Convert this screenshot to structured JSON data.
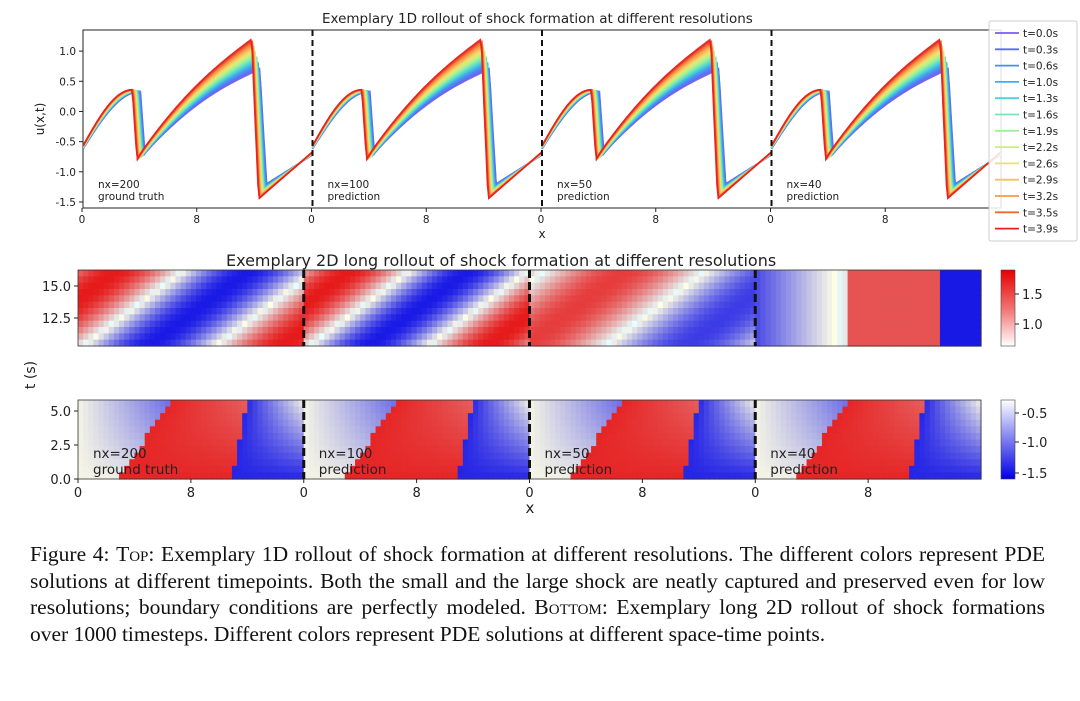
{
  "figure": {
    "top_title": "Exemplary 1D rollout of shock formation at different resolutions",
    "bottom_title": "Exemplary 2D long rollout of shock formation at different resolutions",
    "caption": {
      "label": "Figure 4:",
      "top_word": "Top",
      "top_text": "Exemplary 1D rollout of shock formation at different resolutions. The different colors represent PDE solutions at different timepoints. Both the small and the large shock are neatly captured and preserved even for low resolutions; boundary conditions are perfectly modeled.",
      "bottom_word": "Bottom",
      "bottom_text": "Exemplary long 2D rollout of shock formations over 1000 timesteps. Different colors represent PDE solutions at different space-time points."
    }
  },
  "chart_data": [
    {
      "type": "line",
      "title": "Exemplary 1D rollout of shock formation at different resolutions",
      "xlabel": "x",
      "ylabel": "u(x,t)",
      "ylim": [
        -1.6,
        1.35
      ],
      "yticks": [
        "1.0",
        "0.5",
        "0.0",
        "-0.5",
        "-1.0",
        "-1.5"
      ],
      "xticks": [
        "0",
        "8"
      ],
      "legend_position": "right",
      "series": [
        {
          "name": "t=0.0s",
          "color": "#7b5cf0"
        },
        {
          "name": "t=0.3s",
          "color": "#5c6ff4"
        },
        {
          "name": "t=0.6s",
          "color": "#4a8cf0"
        },
        {
          "name": "t=1.0s",
          "color": "#3fb1e8"
        },
        {
          "name": "t=1.3s",
          "color": "#4fd2d6"
        },
        {
          "name": "t=1.6s",
          "color": "#72e6b8"
        },
        {
          "name": "t=1.9s",
          "color": "#a0f09a"
        },
        {
          "name": "t=2.2s",
          "color": "#c7f07e"
        },
        {
          "name": "t=2.6s",
          "color": "#eee070"
        },
        {
          "name": "t=2.9s",
          "color": "#f8c060"
        },
        {
          "name": "t=3.2s",
          "color": "#f89a48"
        },
        {
          "name": "t=3.5s",
          "color": "#f06a34"
        },
        {
          "name": "t=3.9s",
          "color": "#e82020"
        }
      ],
      "panels": [
        {
          "resolution": "nx=200",
          "label": "ground truth"
        },
        {
          "resolution": "nx=100",
          "label": "prediction"
        },
        {
          "resolution": "nx=50",
          "label": "prediction"
        },
        {
          "resolution": "nx=40",
          "label": "prediction"
        }
      ]
    },
    {
      "type": "heatmap",
      "title": "Exemplary 2D long rollout of shock formation at different resolutions",
      "xlabel": "x",
      "ylabel": "t (s)",
      "xticks": [
        "0",
        "8"
      ],
      "upper_yticks": [
        "15.0",
        "12.5"
      ],
      "lower_yticks": [
        "5.0",
        "2.5",
        "0.0"
      ],
      "upper_colorbar": {
        "range": [
          0.75,
          1.85
        ],
        "ticks": [
          "1.5",
          "1.0"
        ]
      },
      "lower_colorbar": {
        "range": [
          -1.6,
          -0.3
        ],
        "ticks": [
          "-0.5",
          "-1.0",
          "-1.5"
        ]
      },
      "colormap": [
        "#0000e6",
        "#ffffff",
        "#e60000"
      ],
      "panels": [
        {
          "resolution": "nx=200",
          "label": "ground truth"
        },
        {
          "resolution": "nx=100",
          "label": "prediction"
        },
        {
          "resolution": "nx=50",
          "label": "prediction"
        },
        {
          "resolution": "nx=40",
          "label": "prediction"
        }
      ]
    }
  ]
}
